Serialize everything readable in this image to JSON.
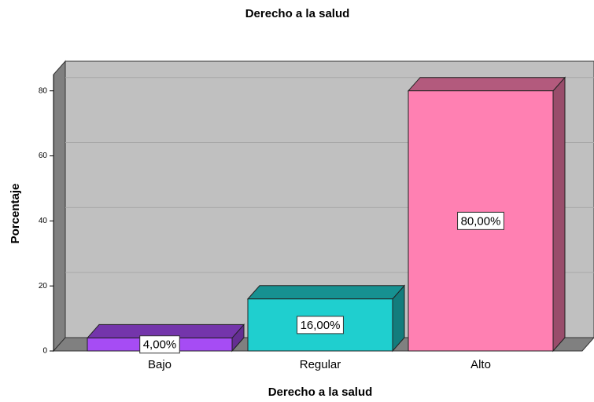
{
  "chart_data": {
    "type": "bar3d",
    "title": "Derecho a la salud",
    "x_label": "Derecho a la salud",
    "y_label": "Porcentaje",
    "categories": [
      "Bajo",
      "Regular",
      "Alto"
    ],
    "values": [
      4,
      16,
      80
    ],
    "value_labels": [
      "4,00%",
      "16,00%",
      "80,00%"
    ],
    "colors": [
      "#a64cf4",
      "#1fcfcf",
      "#ff80b2"
    ],
    "ylim": [
      0,
      85
    ],
    "yticks": [
      0,
      20,
      40,
      60,
      80
    ],
    "grid": true
  }
}
